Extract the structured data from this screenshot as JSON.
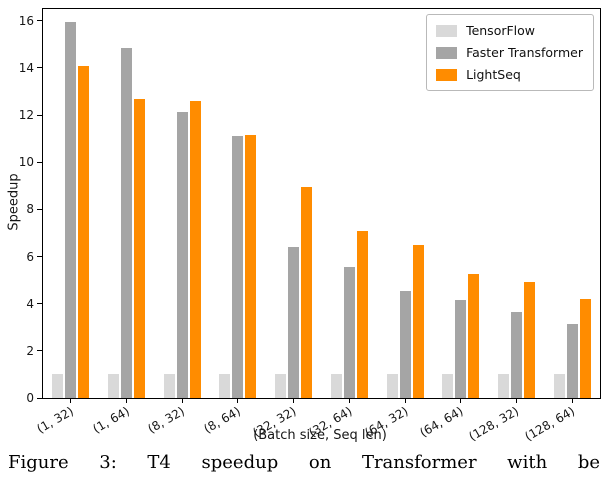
{
  "chart_data": {
    "type": "bar",
    "title": "",
    "xlabel": "(Batch size, Seq len)",
    "ylabel": "Speedup",
    "categories": [
      "(1, 32)",
      "(1, 64)",
      "(8, 32)",
      "(8, 64)",
      "(32, 32)",
      "(32, 64)",
      "(64, 32)",
      "(64, 64)",
      "(128, 32)",
      "(128, 64)"
    ],
    "series": [
      {
        "name": "TensorFlow",
        "color": "#d9d9d9",
        "values": [
          1,
          1,
          1,
          1,
          1,
          1,
          1,
          1,
          1,
          1
        ]
      },
      {
        "name": "Faster Transformer",
        "color": "#a5a5a5",
        "values": [
          15.95,
          14.85,
          12.15,
          11.1,
          6.4,
          5.55,
          4.55,
          4.15,
          3.65,
          3.15
        ]
      },
      {
        "name": "LightSeq",
        "color": "#ff8c00",
        "values": [
          14.1,
          12.7,
          12.6,
          11.15,
          8.95,
          7.1,
          6.5,
          5.25,
          4.9,
          4.2
        ]
      }
    ],
    "yticks": [
      0,
      2,
      4,
      6,
      8,
      10,
      12,
      14,
      16
    ],
    "ylim": [
      0,
      16.5
    ],
    "grid": false,
    "legend_position": "upper right"
  },
  "caption": "Figure 3: T4 speedup on Transformer with be"
}
